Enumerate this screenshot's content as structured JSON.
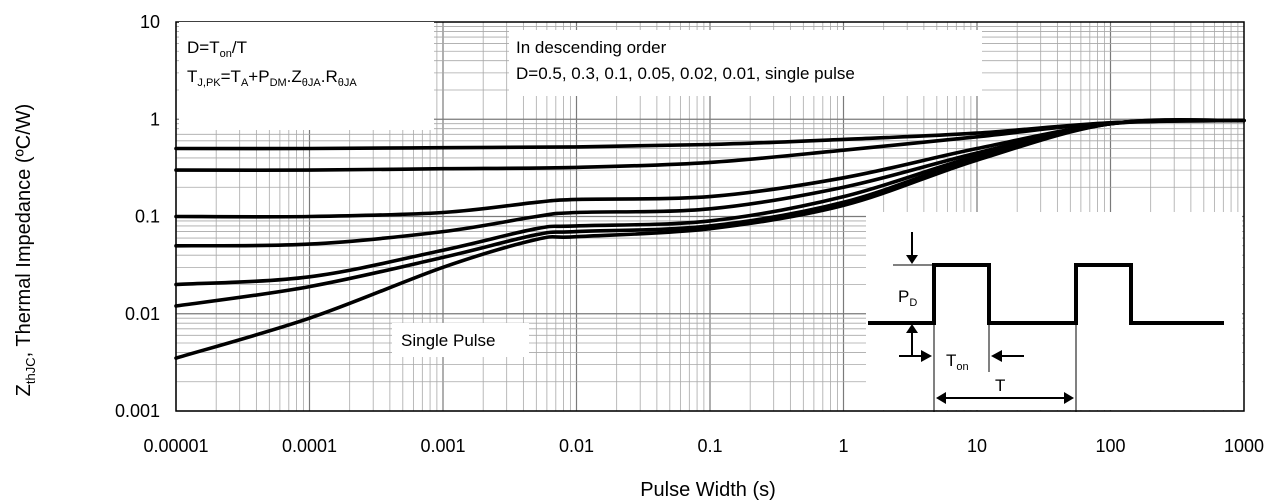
{
  "chart_data": {
    "type": "line",
    "title": "",
    "xlabel": "Pulse Width (s)",
    "ylabel": "Thermal Impedance (ºC/W)",
    "ylabel_prefix": "Z",
    "ylabel_prefix_sub": "thJC",
    "xscale": "log",
    "yscale": "log",
    "xlim": [
      1e-05,
      1000
    ],
    "ylim": [
      0.001,
      10
    ],
    "x_tick_labels": [
      "0.00001",
      "0.0001",
      "0.001",
      "0.01",
      "0.1",
      "1",
      "10",
      "100",
      "1000"
    ],
    "y_tick_labels": [
      "10",
      "1",
      "0.1",
      "0.01",
      "0.001"
    ],
    "grid": true,
    "line_color": "#000000",
    "series": [
      {
        "x": [
          1e-05,
          0.0001,
          0.001,
          0.01,
          0.1,
          1,
          10,
          100,
          1000
        ],
        "values": [
          0.5,
          0.5,
          0.51,
          0.52,
          0.55,
          0.62,
          0.72,
          0.92,
          0.97
        ]
      },
      {
        "x": [
          1e-05,
          0.0001,
          0.001,
          0.01,
          0.1,
          1,
          10,
          100,
          1000
        ],
        "values": [
          0.3,
          0.3,
          0.31,
          0.32,
          0.36,
          0.48,
          0.66,
          0.92,
          0.97
        ]
      },
      {
        "x": [
          1e-05,
          0.0001,
          0.001,
          0.005,
          0.01,
          0.1,
          1,
          10,
          100,
          1000
        ],
        "values": [
          0.1,
          0.1,
          0.11,
          0.14,
          0.15,
          0.16,
          0.25,
          0.5,
          0.9,
          0.97
        ]
      },
      {
        "x": [
          1e-05,
          0.0001,
          0.001,
          0.005,
          0.01,
          0.1,
          1,
          10,
          100,
          1000
        ],
        "values": [
          0.05,
          0.052,
          0.07,
          0.1,
          0.11,
          0.12,
          0.2,
          0.45,
          0.9,
          0.97
        ]
      },
      {
        "x": [
          1e-05,
          0.0001,
          0.001,
          0.005,
          0.01,
          0.1,
          1,
          10,
          100,
          1000
        ],
        "values": [
          0.02,
          0.024,
          0.045,
          0.075,
          0.08,
          0.09,
          0.16,
          0.42,
          0.9,
          0.97
        ]
      },
      {
        "x": [
          1e-05,
          0.0001,
          0.001,
          0.005,
          0.01,
          0.1,
          1,
          10,
          100,
          1000
        ],
        "values": [
          0.012,
          0.019,
          0.038,
          0.065,
          0.07,
          0.08,
          0.14,
          0.4,
          0.9,
          0.97
        ]
      },
      {
        "x": [
          1e-05,
          0.0001,
          0.001,
          0.005,
          0.01,
          0.1,
          1,
          10,
          100,
          1000
        ],
        "values": [
          0.0035,
          0.009,
          0.03,
          0.058,
          0.062,
          0.075,
          0.13,
          0.38,
          0.9,
          0.97
        ]
      }
    ],
    "annotations": {
      "formula1": {
        "main": "D=T",
        "sub": "on",
        "tail": "/T"
      },
      "formula2": [
        {
          "t": "T"
        },
        {
          "t": "J,PK",
          "sub": true
        },
        {
          "t": "=T"
        },
        {
          "t": "A",
          "sub": true
        },
        {
          "t": "+P"
        },
        {
          "t": "DM",
          "sub": true
        },
        {
          "t": ".Z"
        },
        {
          "t": "θJA",
          "sub": true
        },
        {
          "t": ".R"
        },
        {
          "t": "θJA",
          "sub": true
        }
      ],
      "order_line1": "In descending order",
      "order_line2": "D=0.5, 0.3, 0.1, 0.05, 0.02, 0.01, single pulse",
      "single_pulse": "Single Pulse",
      "pd_main": "P",
      "pd_sub": "D",
      "ton_main": "T",
      "ton_sub": "on",
      "period": "T"
    }
  }
}
